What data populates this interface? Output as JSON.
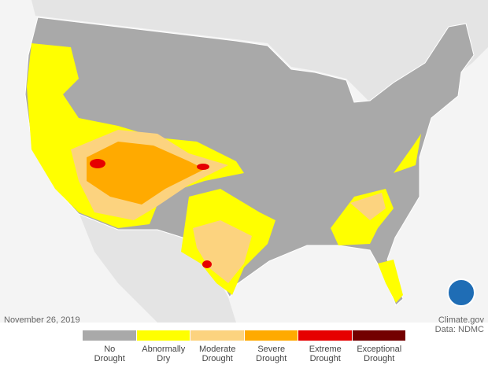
{
  "date": "November 26, 2019",
  "credit": "Climate.gov",
  "source": "Data: NDMC",
  "legend": [
    {
      "label": "No Drought",
      "color": "#a9a9a9"
    },
    {
      "label": "Abnormally Dry",
      "color": "#ffff00"
    },
    {
      "label": "Moderate Drought",
      "color": "#fcd37f"
    },
    {
      "label": "Severe Drought",
      "color": "#ffaa00"
    },
    {
      "label": "Extreme Drought",
      "color": "#e60000"
    },
    {
      "label": "Exceptional Drought",
      "color": "#730000"
    }
  ]
}
